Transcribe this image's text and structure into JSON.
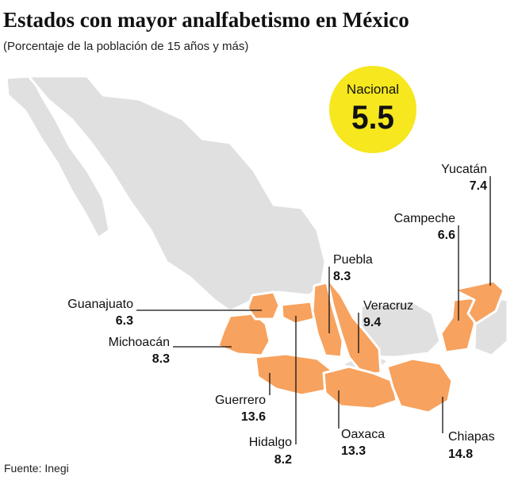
{
  "header": {
    "title": "Estados con mayor analfabetismo en México",
    "subtitle": "(Porcentaje de la población de 15 años y más)"
  },
  "national": {
    "label": "Nacional",
    "value": 5.5
  },
  "states": [
    {
      "name": "Yucatán",
      "value": 7.4
    },
    {
      "name": "Campeche",
      "value": 6.6
    },
    {
      "name": "Puebla",
      "value": 8.3
    },
    {
      "name": "Veracruz",
      "value": 9.4
    },
    {
      "name": "Guanajuato",
      "value": 6.3
    },
    {
      "name": "Michoacán",
      "value": 8.3
    },
    {
      "name": "Guerrero",
      "value": 13.6
    },
    {
      "name": "Hidalgo",
      "value": 8.2
    },
    {
      "name": "Oaxaca",
      "value": 13.3
    },
    {
      "name": "Chiapas",
      "value": 14.8
    }
  ],
  "source": "Fuente: Inegi"
}
